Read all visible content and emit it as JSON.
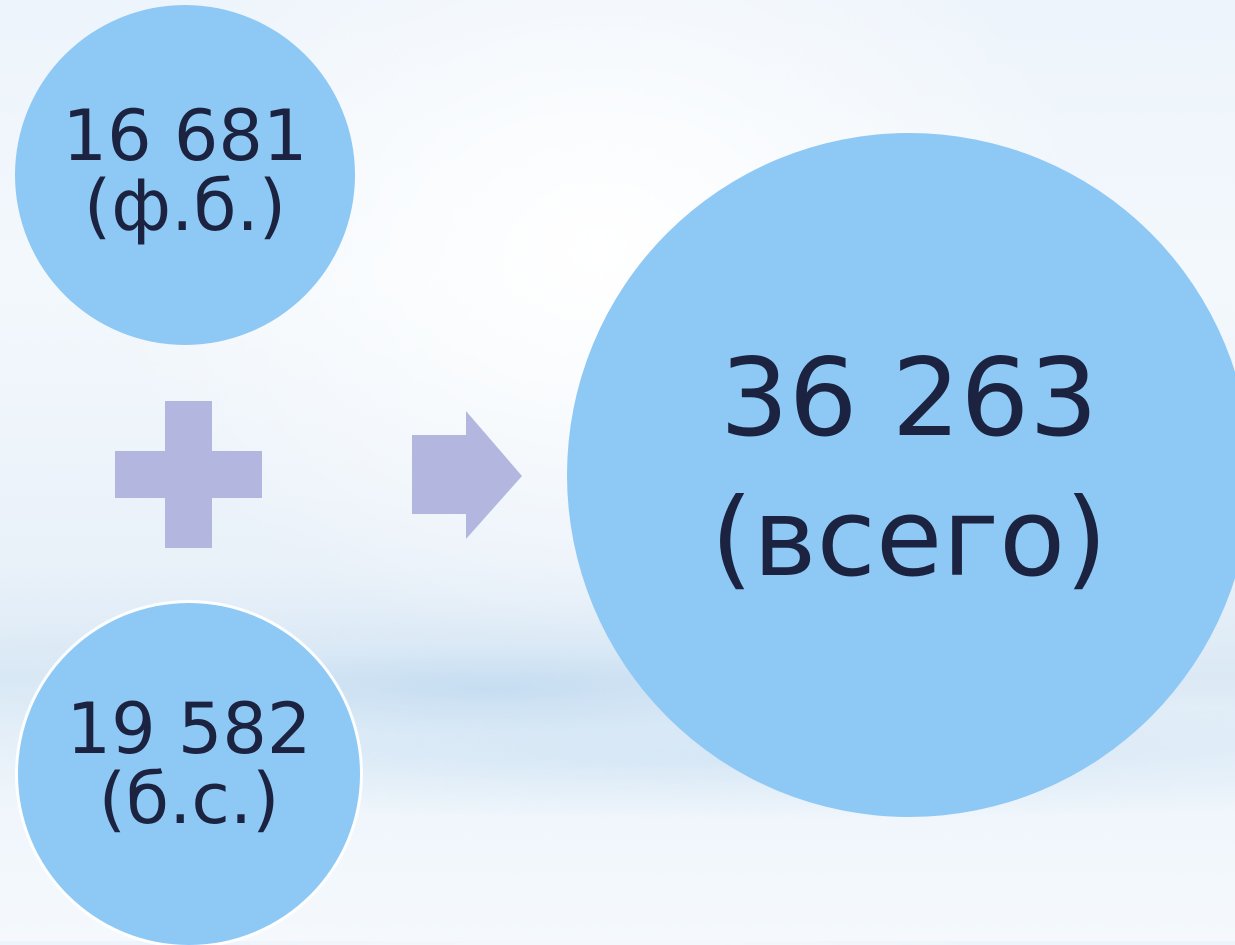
{
  "left_top": {
    "value": "16 681",
    "label": "(ф.б.)"
  },
  "left_bottom": {
    "value": "19 582",
    "label": "(б.с.)"
  },
  "total": {
    "value": "36 263",
    "label": "(всего)"
  },
  "operators": {
    "plus_icon": "plus-icon",
    "arrow_icon": "arrow-right-icon"
  },
  "colors": {
    "circle_fill": "#8ec8f5",
    "operator_fill": "#b3b7e0",
    "text": "#1b2340"
  }
}
